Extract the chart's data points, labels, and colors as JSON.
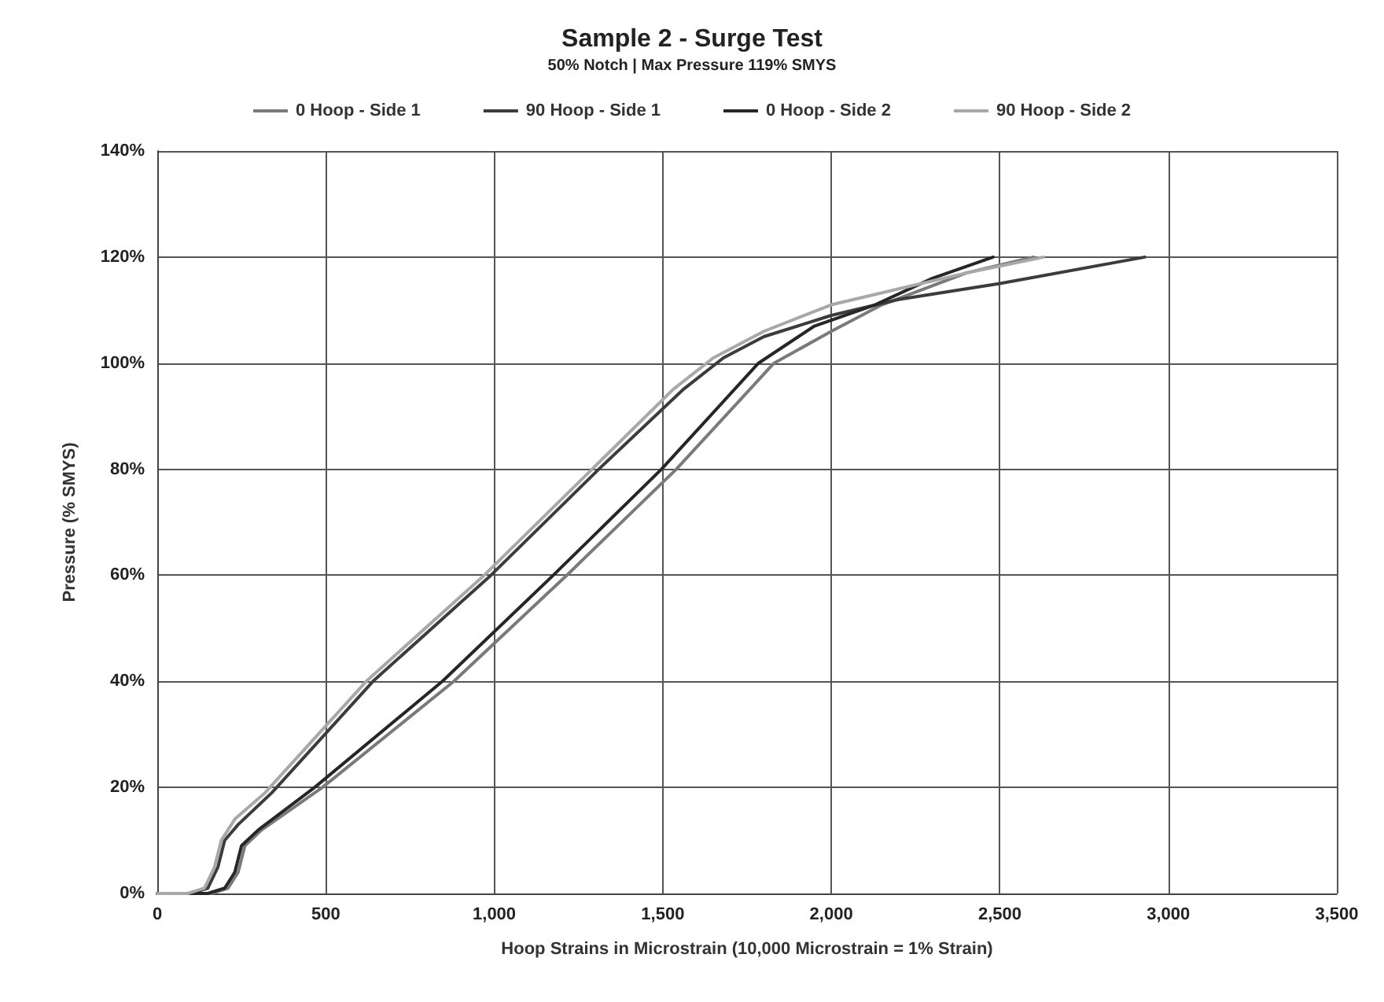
{
  "chart_data": {
    "type": "line",
    "title": "Sample 2 - Surge Test",
    "subtitle": "50% Notch | Max Pressure 119% SMYS",
    "xlabel": "Hoop Strains in Microstrain (10,000 Microstrain = 1% Strain)",
    "ylabel": "Pressure (% SMYS)",
    "series": [
      {
        "name": "0 Hoop - Side 1",
        "color": "#7a7a7a",
        "x": [
          0,
          160,
          210,
          240,
          260,
          310,
          490,
          880,
          1215,
          1540,
          1830,
          2000,
          2150,
          2400,
          2600
        ],
        "values": [
          0,
          0,
          1,
          4,
          9,
          12,
          20,
          40,
          60,
          80,
          100,
          106,
          111,
          117,
          120
        ]
      },
      {
        "name": "90 Hoop - Side 1",
        "color": "#3c3c3c",
        "x": [
          0,
          100,
          150,
          180,
          200,
          240,
          340,
          640,
          990,
          1310,
          1560,
          1680,
          1800,
          2000,
          2200,
          2500,
          2930
        ],
        "values": [
          0,
          0,
          1,
          5,
          10,
          13,
          19,
          40,
          60,
          80,
          95,
          101,
          105,
          109,
          112,
          115,
          120
        ]
      },
      {
        "name": "0 Hoop - Side 2",
        "color": "#262626",
        "x": [
          0,
          150,
          200,
          230,
          250,
          300,
          467,
          846,
          1175,
          1496,
          1784,
          1950,
          2130,
          2300,
          2480
        ],
        "values": [
          0,
          0,
          1,
          4,
          9,
          12,
          20,
          40,
          60,
          80,
          100,
          107,
          111,
          116,
          120
        ]
      },
      {
        "name": "90 Hoop - Side 2",
        "color": "#a8a8a8",
        "x": [
          0,
          90,
          140,
          170,
          190,
          230,
          320,
          620,
          970,
          1290,
          1530,
          1650,
          1800,
          2000,
          2200,
          2400,
          2630
        ],
        "values": [
          0,
          0,
          1,
          5,
          10,
          14,
          19,
          40,
          60,
          80,
          95,
          101,
          106,
          111,
          114,
          117,
          120
        ]
      }
    ],
    "xlim": [
      0,
      3500
    ],
    "xticks": [
      0,
      500,
      {
        "value": 1000,
        "label": "1,000"
      },
      {
        "value": 1500,
        "label": "1,500"
      },
      {
        "value": 2000,
        "label": "2,000"
      },
      {
        "value": 2500,
        "label": "2,500"
      },
      {
        "value": 3000,
        "label": "3,000"
      },
      {
        "value": 3500,
        "label": "3,500"
      }
    ],
    "ylim": [
      0,
      140
    ],
    "yticks": [
      {
        "value": 0,
        "label": "0%"
      },
      {
        "value": 20,
        "label": "20%"
      },
      {
        "value": 40,
        "label": "40%"
      },
      {
        "value": 60,
        "label": "60%"
      },
      {
        "value": 80,
        "label": "80%"
      },
      {
        "value": 100,
        "label": "100%"
      },
      {
        "value": 120,
        "label": "120%"
      },
      {
        "value": 140,
        "label": "140%"
      }
    ],
    "grid": true,
    "legend": "top",
    "marker": "none",
    "line_style": "solid"
  }
}
